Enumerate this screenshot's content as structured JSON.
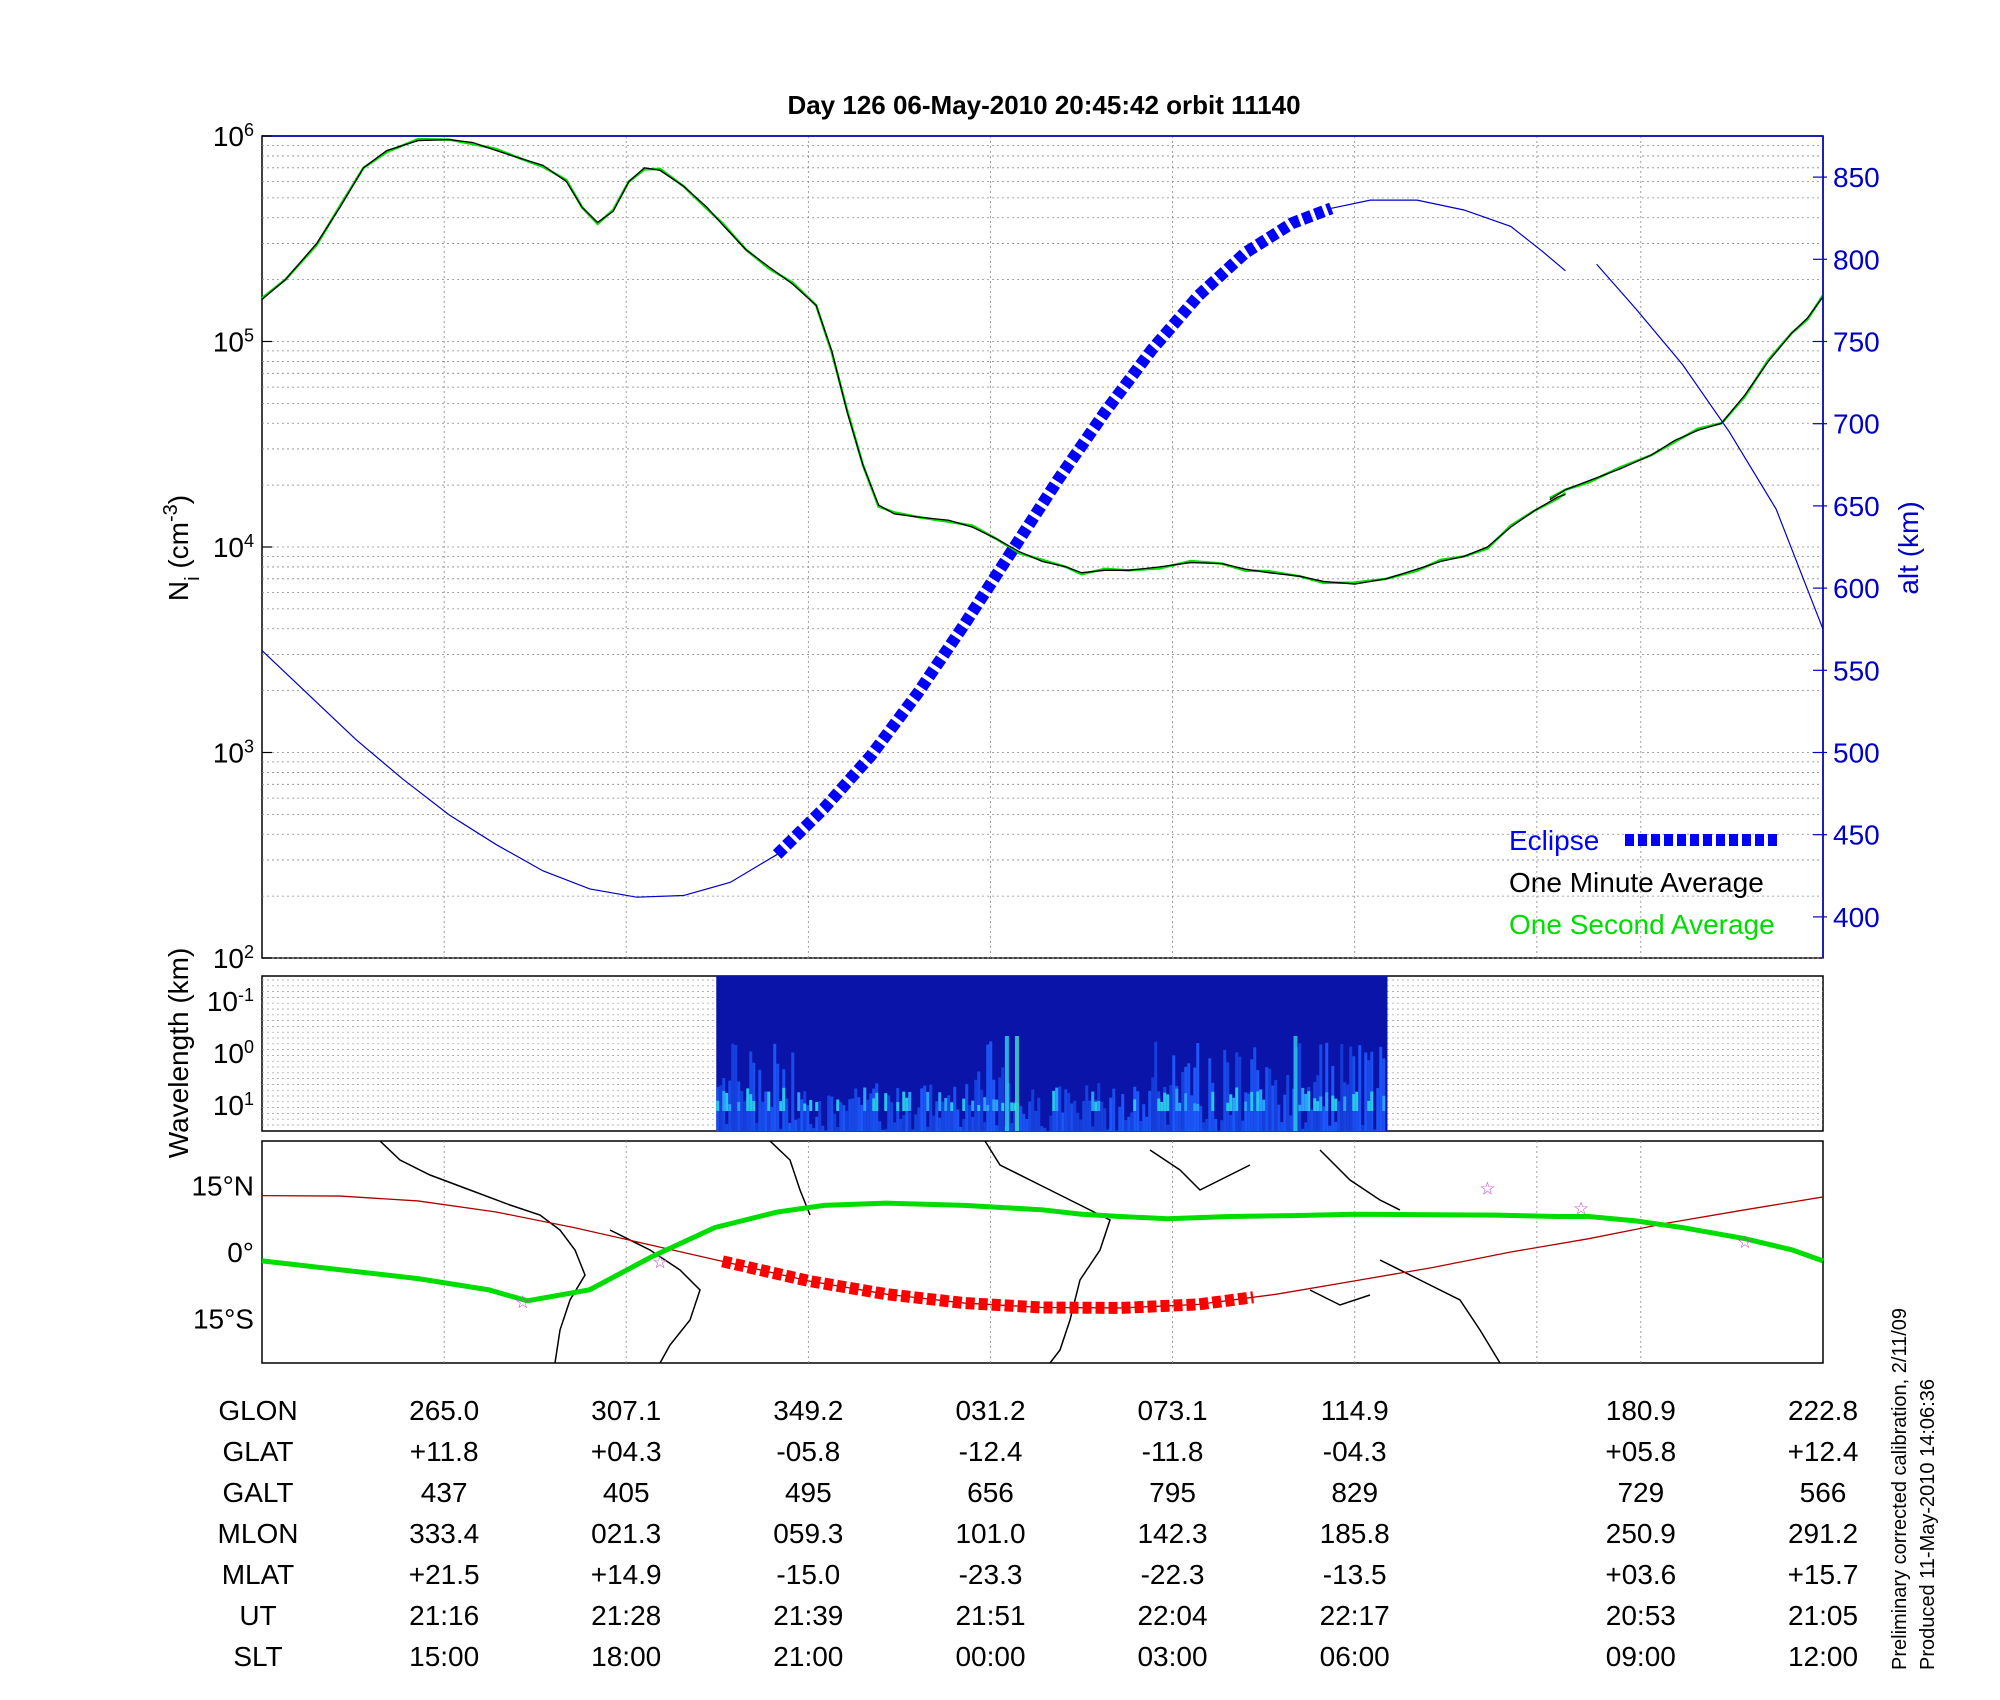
{
  "title": "Day 126  06-May-2010 20:45:42   orbit 11140",
  "colors": {
    "altitude": "#0000c8",
    "eclipse": "#0000ff",
    "minute_avg": "#000000",
    "second_avg": "#00dd00",
    "track": "#b00000",
    "eclipse_track": "#ff0000",
    "map_density": "#00dd00",
    "star": "#cc44cc"
  },
  "chart_data": [
    {
      "type": "line",
      "panel": "density",
      "ylabel_main": "N",
      "ylabel_sub": "i",
      "ylabel_units": " (cm",
      "ylabel_exp": "-3",
      "ylabel_close": ")",
      "yscale": "log",
      "ylim": [
        100,
        1000000
      ],
      "y_ticks": [
        {
          "base": "10",
          "exp": "2"
        },
        {
          "base": "10",
          "exp": "3"
        },
        {
          "base": "10",
          "exp": "4"
        },
        {
          "base": "10",
          "exp": "5"
        },
        {
          "base": "10",
          "exp": "6"
        }
      ],
      "y2label": "alt (km)",
      "y2lim": [
        375,
        875
      ],
      "y2_ticks": [
        "400",
        "450",
        "500",
        "550",
        "600",
        "650",
        "700",
        "750",
        "800",
        "850"
      ],
      "xlim": [
        0,
        100
      ],
      "x_gridlines": [
        11.67,
        23.33,
        35.0,
        46.67,
        58.33,
        70.0,
        81.67,
        88.33
      ],
      "series": [
        {
          "name": "One Minute Average",
          "role": "density",
          "segments": [
            [
              [
                0,
                160000
              ],
              [
                1.5,
                200000
              ],
              [
                3.5,
                300000
              ],
              [
                5,
                450000
              ],
              [
                6.5,
                700000
              ],
              [
                8,
                850000
              ],
              [
                10,
                950000
              ],
              [
                12,
                960000
              ],
              [
                13.5,
                930000
              ],
              [
                15,
                850000
              ],
              [
                16.5,
                780000
              ],
              [
                18,
                720000
              ],
              [
                19.5,
                600000
              ],
              [
                20.5,
                450000
              ],
              [
                21.5,
                380000
              ],
              [
                22.5,
                430000
              ],
              [
                23.5,
                600000
              ],
              [
                24.5,
                700000
              ],
              [
                25.5,
                680000
              ],
              [
                27,
                570000
              ],
              [
                28.5,
                450000
              ],
              [
                29.5,
                370000
              ],
              [
                31,
                280000
              ],
              [
                32.5,
                230000
              ],
              [
                34,
                190000
              ],
              [
                35.5,
                150000
              ],
              [
                36.5,
                90000
              ],
              [
                37.5,
                45000
              ],
              [
                38.5,
                25000
              ],
              [
                39.5,
                16000
              ],
              [
                40.5,
                14500
              ],
              [
                42,
                14000
              ],
              [
                44,
                13500
              ],
              [
                45.5,
                12500
              ],
              [
                47,
                11000
              ],
              [
                48.5,
                9500
              ],
              [
                50,
                8500
              ],
              [
                51.5,
                8000
              ],
              [
                52.5,
                7500
              ],
              [
                54,
                7700
              ],
              [
                55.5,
                7700
              ],
              [
                57.5,
                8000
              ],
              [
                59.5,
                8400
              ],
              [
                61.5,
                8300
              ],
              [
                63,
                7800
              ],
              [
                64.5,
                7500
              ],
              [
                66.5,
                7200
              ],
              [
                68,
                6800
              ],
              [
                70,
                6600
              ],
              [
                72,
                7000
              ],
              [
                74,
                7800
              ],
              [
                75.5,
                8500
              ],
              [
                77,
                9000
              ],
              [
                78.5,
                10000
              ],
              [
                80,
                12500
              ],
              [
                81.5,
                15000
              ],
              [
                83,
                17500
              ],
              [
                83.5,
                18000
              ]
            ],
            [
              [
                82.5,
                17000
              ],
              [
                83.5,
                19000
              ],
              [
                85,
                21000
              ],
              [
                87,
                24000
              ],
              [
                89,
                28000
              ],
              [
                90.5,
                33000
              ],
              [
                92,
                37000
              ],
              [
                93.5,
                40000
              ],
              [
                95,
                55000
              ],
              [
                96.5,
                80000
              ],
              [
                98,
                110000
              ],
              [
                99,
                130000
              ],
              [
                100,
                165000
              ]
            ]
          ],
          "gap_note": "",
          "x_offsets_note": ""
        },
        {
          "name": "Eclipse",
          "role": "altitude-eclipse"
        },
        {
          "name": "One Second Average",
          "role": "density-1s"
        },
        {
          "name": "",
          "role": "altitude",
          "segments": [
            [
              [
                0,
                562
              ],
              [
                3,
                535
              ],
              [
                6,
                508
              ],
              [
                9,
                484
              ],
              [
                12,
                462
              ],
              [
                15,
                444
              ],
              [
                18,
                428
              ],
              [
                21,
                417
              ],
              [
                24,
                412
              ],
              [
                27,
                413
              ],
              [
                30,
                421
              ],
              [
                33,
                438
              ]
            ],
            [
              [
                33,
                438
              ],
              [
                36,
                466
              ],
              [
                39,
                498
              ],
              [
                42,
                536
              ],
              [
                45,
                578
              ],
              [
                48,
                622
              ],
              [
                51,
                666
              ],
              [
                54,
                707
              ],
              [
                57,
                745
              ],
              [
                60,
                778
              ],
              [
                63,
                804
              ],
              [
                66,
                822
              ],
              [
                68.5,
                831
              ]
            ],
            [
              [
                68.5,
                831
              ],
              [
                71,
                836
              ],
              [
                74,
                836
              ],
              [
                77,
                830
              ],
              [
                80,
                820
              ],
              [
                82,
                805
              ],
              [
                83.5,
                793
              ]
            ],
            [
              [
                85.5,
                797
              ],
              [
                88,
                770
              ],
              [
                91,
                736
              ],
              [
                94,
                695
              ],
              [
                97,
                648
              ],
              [
                100,
                575
              ]
            ]
          ],
          "eclipse_range": [
            29.5,
            63.5
          ]
        }
      ]
    },
    {
      "type": "heatmap",
      "panel": "spectrogram",
      "ylabel": "Wavelength (km)",
      "y_ticks": [
        {
          "base": "10",
          "exp": "-1"
        },
        {
          "base": "10",
          "exp": "0"
        },
        {
          "base": "10",
          "exp": "1"
        }
      ],
      "x_range": [
        29.1,
        72.1
      ]
    },
    {
      "type": "line",
      "panel": "map",
      "y_ticks": [
        "15°N",
        "0°",
        "15°S"
      ],
      "ylim": [
        -25,
        25
      ],
      "series": [
        {
          "name": "",
          "role": "track",
          "points": [
            [
              0,
              12.7
            ],
            [
              5,
              12.6
            ],
            [
              10,
              11.5
            ],
            [
              15,
              9
            ],
            [
              20,
              5.5
            ],
            [
              25,
              1.5
            ],
            [
              30,
              -2.5
            ],
            [
              35,
              -6.5
            ],
            [
              40,
              -9.5
            ],
            [
              45,
              -11.5
            ],
            [
              50,
              -12.5
            ],
            [
              55,
              -12.6
            ],
            [
              60,
              -11.8
            ],
            [
              65,
              -9.5
            ],
            [
              70,
              -6.5
            ],
            [
              75,
              -3.5
            ],
            [
              80,
              0
            ],
            [
              85,
              3
            ],
            [
              90,
              6.5
            ],
            [
              95,
              9.5
            ],
            [
              100,
              12.4
            ]
          ],
          "eclipse_range": [
            29.5,
            63.5
          ]
        },
        {
          "name": "",
          "role": "density-map",
          "points": [
            [
              0,
              -2
            ],
            [
              5,
              -4
            ],
            [
              10,
              -6
            ],
            [
              14.5,
              -8.5
            ],
            [
              17,
              -11
            ],
            [
              21,
              -8.5
            ],
            [
              25,
              -1
            ],
            [
              29,
              5.5
            ],
            [
              33,
              9
            ],
            [
              36,
              10.5
            ],
            [
              40,
              11
            ],
            [
              45,
              10.5
            ],
            [
              50,
              9.5
            ],
            [
              52.5,
              8.5
            ],
            [
              55,
              8
            ],
            [
              58,
              7.5
            ],
            [
              62,
              8
            ],
            [
              66,
              8.2
            ],
            [
              70,
              8.5
            ],
            [
              75,
              8.4
            ],
            [
              79,
              8.3
            ],
            [
              83,
              8
            ],
            [
              85,
              8
            ],
            [
              88,
              7
            ],
            [
              91,
              5.5
            ],
            [
              95,
              3
            ],
            [
              98,
              0.5
            ],
            [
              100,
              -2
            ]
          ]
        }
      ],
      "stars": [
        [
          16.7,
          -11
        ],
        [
          25.5,
          -2
        ],
        [
          78.5,
          14.5
        ],
        [
          84.5,
          10
        ],
        [
          95,
          2.5
        ]
      ]
    }
  ],
  "table": {
    "row_labels": [
      "GLON",
      "GLAT",
      "GALT",
      "MLON",
      "MLAT",
      "UT",
      "SLT"
    ],
    "columns": [
      {
        "x": 11.67,
        "cells": [
          "265.0",
          "+11.8",
          "437",
          "333.4",
          "+21.5",
          "21:16",
          "15:00"
        ]
      },
      {
        "x": 23.33,
        "cells": [
          "307.1",
          "+04.3",
          "405",
          "021.3",
          "+14.9",
          "21:28",
          "18:00"
        ]
      },
      {
        "x": 35.0,
        "cells": [
          "349.2",
          "-05.8",
          "495",
          "059.3",
          "-15.0",
          "21:39",
          "21:00"
        ]
      },
      {
        "x": 46.67,
        "cells": [
          "031.2",
          "-12.4",
          "656",
          "101.0",
          "-23.3",
          "21:51",
          "00:00"
        ]
      },
      {
        "x": 58.33,
        "cells": [
          "073.1",
          "-11.8",
          "795",
          "142.3",
          "-22.3",
          "22:04",
          "03:00"
        ]
      },
      {
        "x": 70.0,
        "cells": [
          "114.9",
          "-04.3",
          "829",
          "185.8",
          "-13.5",
          "22:17",
          "06:00"
        ]
      },
      {
        "x": 88.33,
        "cells": [
          "180.9",
          "+05.8",
          "729",
          "250.9",
          "+03.6",
          "20:53",
          "09:00"
        ]
      },
      {
        "x": 100.0,
        "cells": [
          "222.8",
          "+12.4",
          "566",
          "291.2",
          "+15.7",
          "21:05",
          "12:00"
        ]
      }
    ]
  },
  "footer": {
    "line1": "Preliminary corrected calibration, 2/11/09",
    "line2": "Produced 11-May-2010 14:06:36"
  }
}
